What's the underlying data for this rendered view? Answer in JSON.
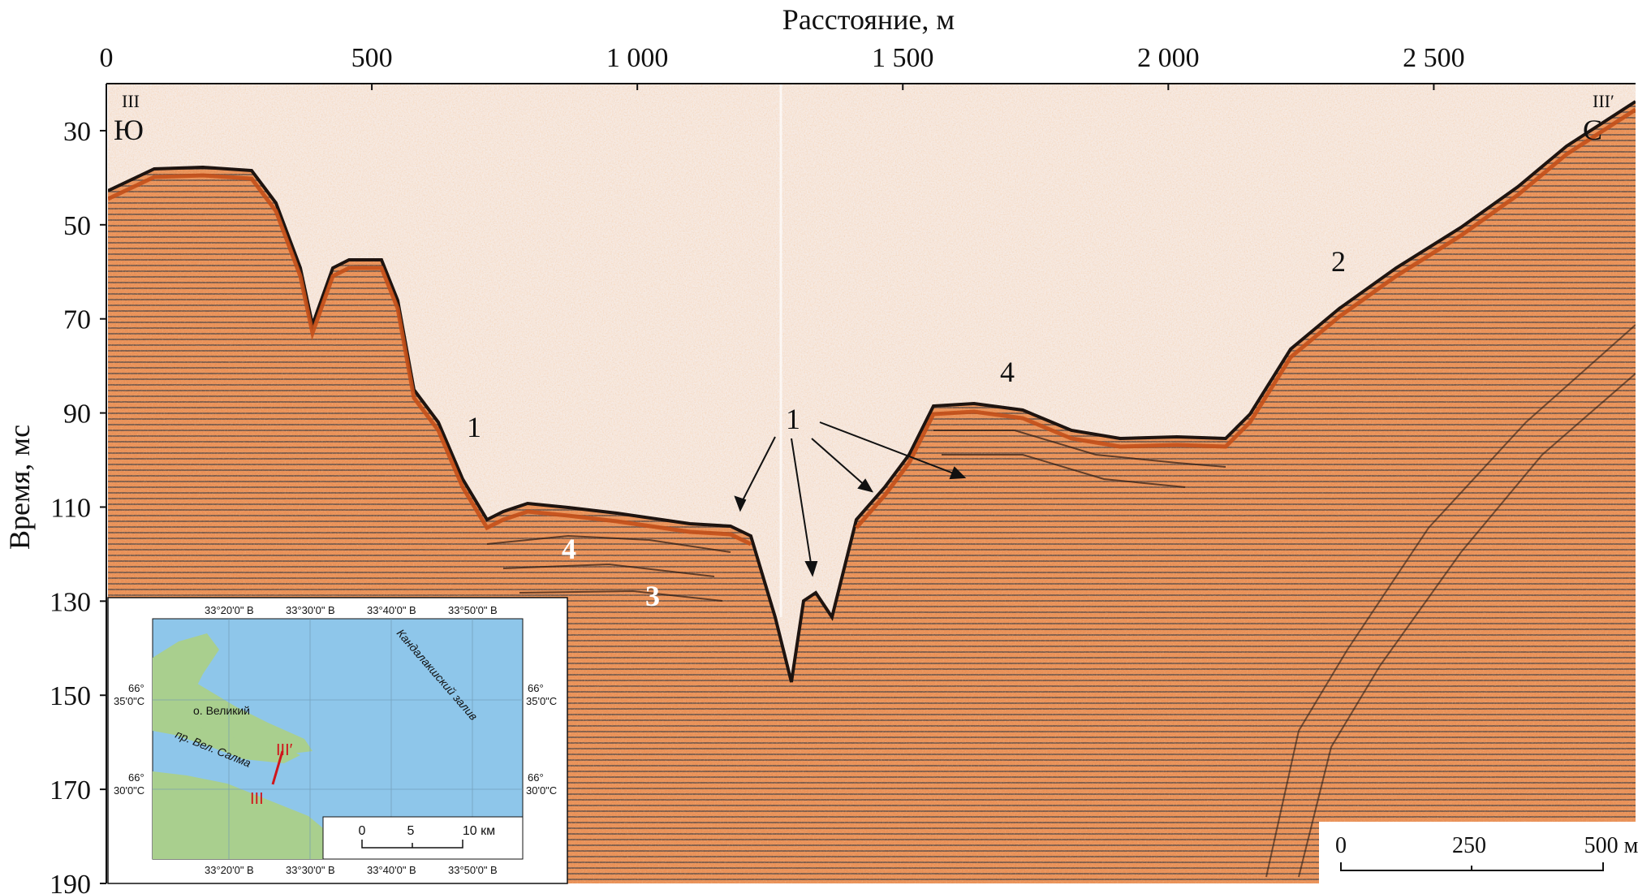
{
  "figure": {
    "x_axis": {
      "title": "Расстояние, м",
      "ticks": [
        {
          "value": 0,
          "label": "0"
        },
        {
          "value": 500,
          "label": "500"
        },
        {
          "value": 1000,
          "label": "1 000"
        },
        {
          "value": 1500,
          "label": "1 500"
        },
        {
          "value": 2000,
          "label": "2 000"
        },
        {
          "value": 2500,
          "label": "2 500"
        }
      ],
      "range": [
        0,
        2880
      ]
    },
    "y_axis": {
      "title": "Время, мс",
      "ticks": [
        {
          "value": 30,
          "label": "30"
        },
        {
          "value": 50,
          "label": "50"
        },
        {
          "value": 70,
          "label": "70"
        },
        {
          "value": 90,
          "label": "90"
        },
        {
          "value": 110,
          "label": "110"
        },
        {
          "value": 130,
          "label": "130"
        },
        {
          "value": 150,
          "label": "150"
        },
        {
          "value": 170,
          "label": "170"
        },
        {
          "value": 190,
          "label": "190"
        }
      ],
      "range": [
        20,
        190
      ]
    },
    "profile_start": {
      "code": "III",
      "direction": "Ю"
    },
    "profile_end": {
      "code": "III′",
      "direction": "С"
    },
    "unit_labels": {
      "label_1_left": "1",
      "label_1_center": "1",
      "label_2": "2",
      "label_3": "3",
      "label_4_left": "4",
      "label_4_right": "4"
    },
    "scale_bar": {
      "t0": "0",
      "t1": "250",
      "t2": "500 м"
    },
    "colors": {
      "paper": "#f7ede6",
      "wave": "#e06a1e",
      "dark": "#2b1a12",
      "water": "#8ec6ea",
      "land": "#a9cf8e"
    }
  },
  "inset_map": {
    "top_coords": [
      "33°20'0\" В",
      "33°30'0\" В",
      "33°40'0\" В",
      "33°50'0\" В"
    ],
    "bottom_coords": [
      "33°20'0\" В",
      "33°30'0\" В",
      "33°40'0\" В",
      "33°50'0\" В"
    ],
    "left_coords": [
      {
        "deg": "66°",
        "min": "35'0\"С"
      },
      {
        "deg": "66°",
        "min": "30'0\"С"
      }
    ],
    "right_coords": [
      {
        "deg": "66°",
        "min": "35'0\"С"
      },
      {
        "deg": "66°",
        "min": "30'0\"С"
      }
    ],
    "place_island": "о. Великий",
    "place_strait": "пр. Вел. Салма",
    "place_gulf": "Кандалакшский залив",
    "profile_start": "III",
    "profile_end": "III′",
    "scale": {
      "t0": "0",
      "t1": "5",
      "t2": "10 км"
    }
  }
}
